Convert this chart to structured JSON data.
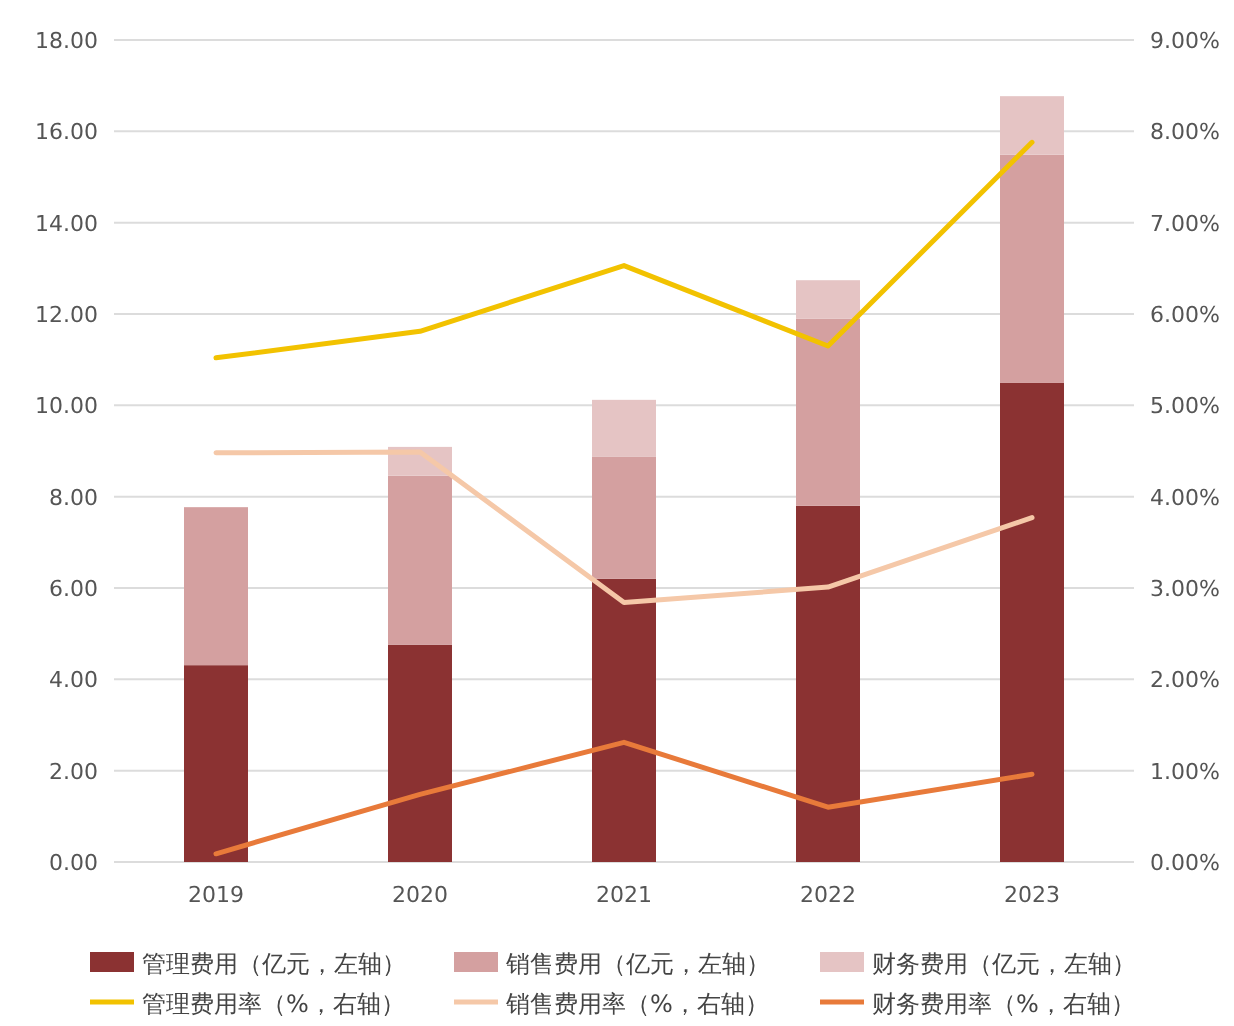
{
  "chart_data": {
    "type": "bar",
    "stacked": true,
    "grid": "y",
    "legend": "bottom",
    "categories": [
      "2019",
      "2020",
      "2021",
      "2022",
      "2023"
    ],
    "ylim": [
      0,
      18
    ],
    "yticks": [
      {
        "value": 0,
        "label": "0.00"
      },
      {
        "value": 2,
        "label": "2.00"
      },
      {
        "value": 4,
        "label": "4.00"
      },
      {
        "value": 6,
        "label": "6.00"
      },
      {
        "value": 8,
        "label": "8.00"
      },
      {
        "value": 10,
        "label": "10.00"
      },
      {
        "value": 12,
        "label": "12.00"
      },
      {
        "value": 14,
        "label": "14.00"
      },
      {
        "value": 16,
        "label": "16.00"
      },
      {
        "value": 18,
        "label": "18.00"
      }
    ],
    "y2lim": [
      0,
      9
    ],
    "y2ticks": [
      {
        "value": 0,
        "label": "0.00%"
      },
      {
        "value": 1,
        "label": "1.00%"
      },
      {
        "value": 2,
        "label": "2.00%"
      },
      {
        "value": 3,
        "label": "3.00%"
      },
      {
        "value": 4,
        "label": "4.00%"
      },
      {
        "value": 5,
        "label": "5.00%"
      },
      {
        "value": 6,
        "label": "6.00%"
      },
      {
        "value": 7,
        "label": "7.00%"
      },
      {
        "value": 8,
        "label": "8.00%"
      },
      {
        "value": 9,
        "label": "9.00%"
      }
    ],
    "series": [
      {
        "name": "管理费用（亿元，左轴）",
        "color": "#8b3232",
        "values": [
          4.31,
          4.76,
          6.2,
          7.8,
          10.49
        ]
      },
      {
        "name": "销售费用（亿元，左轴）",
        "color": "#d4a0a0",
        "values": [
          3.46,
          3.7,
          2.68,
          4.1,
          5.0
        ]
      },
      {
        "name": "财务费用（亿元，左轴）",
        "color": "#e5c4c4",
        "values": [
          0,
          0.63,
          1.24,
          0.84,
          1.28
        ]
      },
      {
        "name": "管理费用率（%，右轴）",
        "type": "line",
        "axis": "y2",
        "color": "#f2c200",
        "values": [
          5.52,
          5.81,
          6.53,
          5.65,
          7.88
        ]
      },
      {
        "name": "销售费用率（%，右轴）",
        "type": "line",
        "axis": "y2",
        "color": "#f5c8a8",
        "values": [
          4.48,
          4.49,
          2.84,
          3.01,
          3.77
        ]
      },
      {
        "name": "财务费用率（%，右轴）",
        "type": "line",
        "axis": "y2",
        "color": "#e87a3a",
        "values": [
          0.09,
          0.74,
          1.31,
          0.6,
          0.96
        ]
      }
    ]
  }
}
